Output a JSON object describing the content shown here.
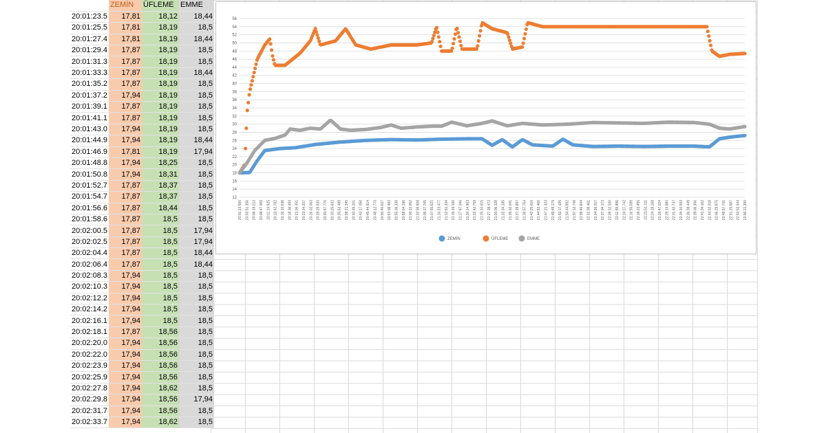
{
  "sheet": {
    "headers": [
      "",
      "ZEMİN",
      "ÜFLEME",
      "EMME"
    ],
    "rows": [
      [
        "20:01:23.5",
        "17,81",
        "18,12",
        "18,44"
      ],
      [
        "20:01:25.5",
        "17,81",
        "18,19",
        "18,5"
      ],
      [
        "20:01:27.4",
        "17,81",
        "18,19",
        "18,44"
      ],
      [
        "20:01:29.4",
        "17,87",
        "18,19",
        "18,5"
      ],
      [
        "20:01:31.3",
        "17,87",
        "18,19",
        "18,5"
      ],
      [
        "20:01:33.3",
        "17,87",
        "18,19",
        "18,44"
      ],
      [
        "20:01:35.2",
        "17,87",
        "18,19",
        "18,5"
      ],
      [
        "20:01:37.2",
        "17,94",
        "18,19",
        "18,5"
      ],
      [
        "20:01:39.1",
        "17,87",
        "18,19",
        "18,5"
      ],
      [
        "20:01:41.1",
        "17,87",
        "18,19",
        "18,5"
      ],
      [
        "20:01:43.0",
        "17,94",
        "18,19",
        "18,5"
      ],
      [
        "20:01:44.9",
        "17,94",
        "18,19",
        "18,44"
      ],
      [
        "20:01:46.9",
        "17,81",
        "18,19",
        "17,94"
      ],
      [
        "20:01:48.8",
        "17,94",
        "18,25",
        "18,5"
      ],
      [
        "20:01:50.8",
        "17,94",
        "18,31",
        "18,5"
      ],
      [
        "20:01:52.7",
        "17,87",
        "18,37",
        "18,5"
      ],
      [
        "20:01:54.7",
        "17,87",
        "18,37",
        "18,5"
      ],
      [
        "20:01:56.6",
        "17,87",
        "18,44",
        "18,5"
      ],
      [
        "20:01:58.6",
        "17,87",
        "18,5",
        "18,5"
      ],
      [
        "20:02:00.5",
        "17,87",
        "18,5",
        "17,94"
      ],
      [
        "20:02:02.5",
        "17,87",
        "18,5",
        "17,94"
      ],
      [
        "20:02:04.4",
        "17,87",
        "18,5",
        "18,44"
      ],
      [
        "20:02:06.4",
        "17,87",
        "18,5",
        "18,44"
      ],
      [
        "20:02:08.3",
        "17,94",
        "18,5",
        "18,5"
      ],
      [
        "20:02:10.3",
        "17,94",
        "18,5",
        "18,5"
      ],
      [
        "20:02:12.2",
        "17,94",
        "18,5",
        "18,5"
      ],
      [
        "20:02:14.2",
        "17,94",
        "18,5",
        "18,5"
      ],
      [
        "20:02:16.1",
        "17,94",
        "18,5",
        "18,5"
      ],
      [
        "20:02:18.1",
        "17,87",
        "18,56",
        "18,5"
      ],
      [
        "20:02:20.0",
        "17,94",
        "18,56",
        "18,5"
      ],
      [
        "20:02:22.0",
        "17,94",
        "18,56",
        "18,5"
      ],
      [
        "20:02:23.9",
        "17,94",
        "18,56",
        "18,5"
      ],
      [
        "20:02:25.9",
        "17,94",
        "18,56",
        "18,5"
      ],
      [
        "20:02:27.8",
        "17,94",
        "18,62",
        "18,5"
      ],
      [
        "20:02:29.8",
        "17,94",
        "18,56",
        "17,94"
      ],
      [
        "20:02:31.7",
        "17,94",
        "18,56",
        "18,5"
      ],
      [
        "20:02:33.7",
        "17,94",
        "18,62",
        "18,5"
      ]
    ]
  },
  "chart_data": {
    "type": "line",
    "title": "",
    "xlabel": "",
    "ylabel": "",
    "ylim": [
      12,
      56
    ],
    "yticks": [
      12,
      14,
      16,
      18,
      20,
      22,
      24,
      26,
      28,
      30,
      32,
      34,
      36,
      38,
      40,
      42,
      44,
      46,
      48,
      50,
      52,
      54,
      56
    ],
    "grid": true,
    "legend_position": "bottom",
    "x_start": "20:01:23.5",
    "x_end": "22:56:21.3",
    "xtick_count": 72,
    "series": [
      {
        "name": "ZEMİN",
        "color": "#5b9bd5",
        "points": [
          [
            0,
            18.0
          ],
          [
            0.02,
            18.1
          ],
          [
            0.035,
            21
          ],
          [
            0.05,
            23.5
          ],
          [
            0.08,
            24.0
          ],
          [
            0.11,
            24.2
          ],
          [
            0.15,
            25.0
          ],
          [
            0.2,
            25.6
          ],
          [
            0.25,
            26.0
          ],
          [
            0.3,
            26.2
          ],
          [
            0.35,
            26.1
          ],
          [
            0.4,
            26.3
          ],
          [
            0.45,
            26.4
          ],
          [
            0.48,
            26.4
          ],
          [
            0.5,
            24.8
          ],
          [
            0.52,
            26.2
          ],
          [
            0.54,
            24.4
          ],
          [
            0.56,
            26.2
          ],
          [
            0.58,
            24.9
          ],
          [
            0.62,
            24.6
          ],
          [
            0.64,
            26.3
          ],
          [
            0.66,
            24.9
          ],
          [
            0.7,
            24.5
          ],
          [
            0.75,
            24.6
          ],
          [
            0.8,
            24.5
          ],
          [
            0.85,
            24.6
          ],
          [
            0.9,
            24.6
          ],
          [
            0.93,
            24.4
          ],
          [
            0.95,
            26.4
          ],
          [
            0.97,
            26.8
          ],
          [
            1.0,
            27.2
          ]
        ]
      },
      {
        "name": "ÜFLEME",
        "color": "#ed7d31",
        "points": [
          [
            0,
            18.0
          ],
          [
            0.01,
            20
          ],
          [
            0.015,
            33
          ],
          [
            0.02,
            38
          ],
          [
            0.035,
            46
          ],
          [
            0.05,
            49.5
          ],
          [
            0.06,
            51.0
          ],
          [
            0.065,
            47
          ],
          [
            0.07,
            44.5
          ],
          [
            0.09,
            44.5
          ],
          [
            0.12,
            47.5
          ],
          [
            0.14,
            50.5
          ],
          [
            0.15,
            53.5
          ],
          [
            0.16,
            49.5
          ],
          [
            0.19,
            50.5
          ],
          [
            0.21,
            53.5
          ],
          [
            0.23,
            49.5
          ],
          [
            0.26,
            48.5
          ],
          [
            0.3,
            49.5
          ],
          [
            0.35,
            49.5
          ],
          [
            0.38,
            50.0
          ],
          [
            0.39,
            54.0
          ],
          [
            0.4,
            48.0
          ],
          [
            0.42,
            48.0
          ],
          [
            0.43,
            54.0
          ],
          [
            0.44,
            48.5
          ],
          [
            0.47,
            48.5
          ],
          [
            0.48,
            55.0
          ],
          [
            0.5,
            53.5
          ],
          [
            0.53,
            52.5
          ],
          [
            0.54,
            48.5
          ],
          [
            0.56,
            49.0
          ],
          [
            0.57,
            55.0
          ],
          [
            0.6,
            54.0
          ],
          [
            0.7,
            54.0
          ],
          [
            0.8,
            54.0
          ],
          [
            0.9,
            54.0
          ],
          [
            0.925,
            54.0
          ],
          [
            0.935,
            48.0
          ],
          [
            0.95,
            46.7
          ],
          [
            0.97,
            47.2
          ],
          [
            1.0,
            47.4
          ]
        ]
      },
      {
        "name": "EMME",
        "color": "#a5a5a5",
        "points": [
          [
            0,
            18.0
          ],
          [
            0.015,
            20.5
          ],
          [
            0.03,
            23.5
          ],
          [
            0.05,
            26.0
          ],
          [
            0.07,
            26.5
          ],
          [
            0.09,
            27.3
          ],
          [
            0.1,
            28.8
          ],
          [
            0.12,
            28.5
          ],
          [
            0.14,
            29.0
          ],
          [
            0.16,
            28.8
          ],
          [
            0.18,
            31.0
          ],
          [
            0.2,
            28.8
          ],
          [
            0.22,
            28.5
          ],
          [
            0.25,
            28.7
          ],
          [
            0.28,
            29.2
          ],
          [
            0.3,
            29.8
          ],
          [
            0.32,
            29.0
          ],
          [
            0.35,
            29.3
          ],
          [
            0.38,
            29.5
          ],
          [
            0.4,
            29.5
          ],
          [
            0.42,
            30.5
          ],
          [
            0.45,
            29.6
          ],
          [
            0.48,
            30.2
          ],
          [
            0.5,
            30.8
          ],
          [
            0.53,
            29.6
          ],
          [
            0.56,
            30.2
          ],
          [
            0.6,
            29.8
          ],
          [
            0.65,
            30.0
          ],
          [
            0.7,
            30.4
          ],
          [
            0.75,
            30.3
          ],
          [
            0.8,
            30.2
          ],
          [
            0.85,
            30.5
          ],
          [
            0.9,
            30.4
          ],
          [
            0.93,
            30.0
          ],
          [
            0.95,
            29.0
          ],
          [
            0.97,
            28.8
          ],
          [
            1.0,
            29.4
          ]
        ]
      }
    ]
  }
}
